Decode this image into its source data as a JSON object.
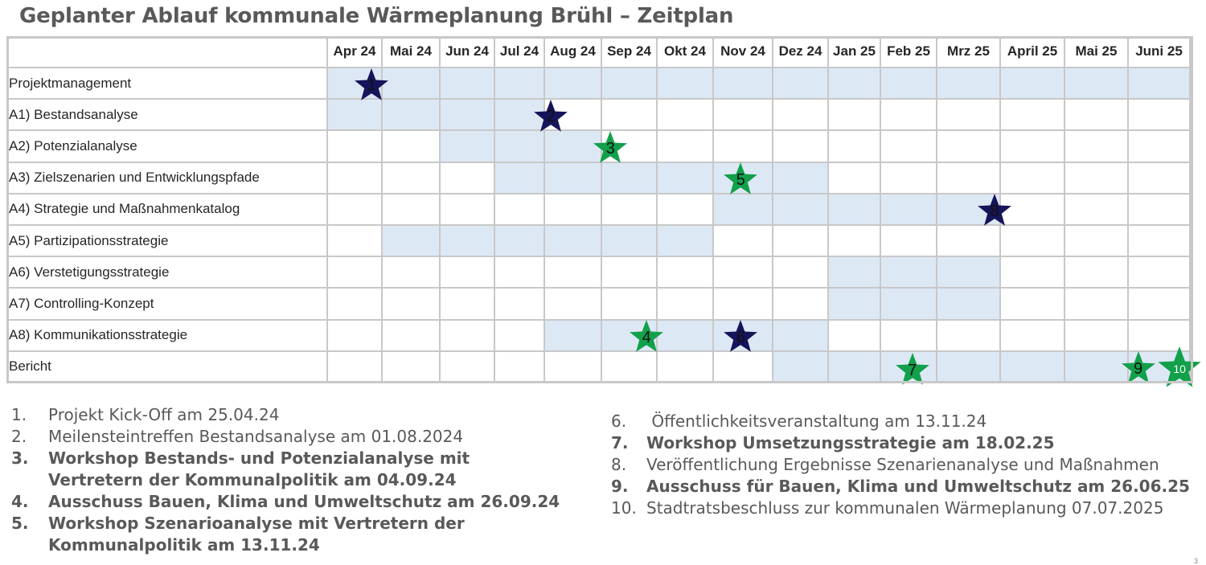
{
  "title": "Geplanter Ablauf kommunale Wärmeplanung Brühl – Zeitplan",
  "colors": {
    "bar_fill": "#dde8f5",
    "grid": "#c8c8c8",
    "star_navy": "#16145a",
    "star_green": "#12a04a"
  },
  "gantt": {
    "months": [
      "Apr 24",
      "Mai 24",
      "Jun 24",
      "Jul 24",
      "Aug 24",
      "Sep 24",
      "Okt 24",
      "Nov 24",
      "Dez 24",
      "Jan 25",
      "Feb 25",
      "Mrz 25",
      "April 25",
      "Mai 25",
      "Juni 25"
    ],
    "rows": [
      {
        "label": "Projektmanagement",
        "start": 0,
        "end": 14
      },
      {
        "label": "A1) Bestandsanalyse",
        "start": 0,
        "end": 3
      },
      {
        "label": "A2) Potenzialanalyse",
        "start": 2,
        "end": 4
      },
      {
        "label": "A3) Zielszenarien und Entwicklungspfade",
        "start": 3,
        "end": 8
      },
      {
        "label": "A4) Strategie und Maßnahmenkatalog",
        "start": 7,
        "end": 11
      },
      {
        "label": "A5) Partizipationsstrategie",
        "start": 1,
        "end": 6
      },
      {
        "label": "A6) Verstetigungsstrategie",
        "start": 9,
        "end": 11
      },
      {
        "label": "A7) Controlling-Konzept",
        "start": 9,
        "end": 11
      },
      {
        "label": "A8) Kommunikationsstrategie",
        "start": 4,
        "end": 8
      },
      {
        "label": "Bericht",
        "start": 8,
        "end": 14
      }
    ],
    "milestones": [
      {
        "num": "1",
        "row": 0,
        "month": 0.8,
        "color": "navy"
      },
      {
        "num": "2",
        "row": 1,
        "month": 4.1,
        "color": "navy"
      },
      {
        "num": "3",
        "row": 2,
        "month": 5.15,
        "color": "green"
      },
      {
        "num": "4",
        "row": 8,
        "month": 5.8,
        "color": "green"
      },
      {
        "num": "5",
        "row": 3,
        "month": 7.45,
        "color": "green"
      },
      {
        "num": "6",
        "row": 8,
        "month": 7.45,
        "color": "navy"
      },
      {
        "num": "7",
        "row": 10,
        "month": 10.55,
        "color": "green"
      },
      {
        "num": "8",
        "row": 4,
        "month": 11.9,
        "color": "navy"
      },
      {
        "num": "9",
        "row": 9,
        "month": 14.15,
        "color": "green"
      },
      {
        "num": "10",
        "row": 9,
        "month": 14.82,
        "color": "green",
        "big": true
      }
    ]
  },
  "notes_left": [
    {
      "n": "1.",
      "text": "Projekt Kick-Off am 25.04.24",
      "bold": false
    },
    {
      "n": "2.",
      "text": "Meilensteintreffen Bestandsanalyse am 01.08.2024",
      "bold": false
    },
    {
      "n": "3.",
      "text": "Workshop Bestands- und Potenzialanalyse mit",
      "bold": true
    },
    {
      "n": "",
      "text": "Vertretern der Kommunalpolitik am 04.09.24",
      "bold": true
    },
    {
      "n": "4.",
      "text": "Ausschuss Bauen, Klima und Umweltschutz am 26.09.24",
      "bold": true
    },
    {
      "n": "5.",
      "text": "Workshop Szenarioanalyse mit Vertretern der",
      "bold": true
    },
    {
      "n": "",
      "text": "Kommunalpolitik am 13.11.24",
      "bold": true
    }
  ],
  "notes_right": [
    {
      "n": "6.",
      "text": " Öffentlichkeitsveranstaltung am 13.11.24",
      "bold": false
    },
    {
      "n": "7.",
      "text": "Workshop Umsetzungsstrategie am 18.02.25",
      "bold": true
    },
    {
      "n": "8.",
      "text": "Veröffentlichung Ergebnisse Szenarienanalyse und Maßnahmen",
      "bold": false
    },
    {
      "n": "9.",
      "text": "Ausschuss für Bauen, Klima und Umweltschutz am 26.06.25",
      "bold": true
    },
    {
      "n": "10.",
      "text": "Stadtratsbeschluss zur kommunalen Wärmeplanung 07.07.2025",
      "bold": false
    }
  ],
  "page_number": "3"
}
